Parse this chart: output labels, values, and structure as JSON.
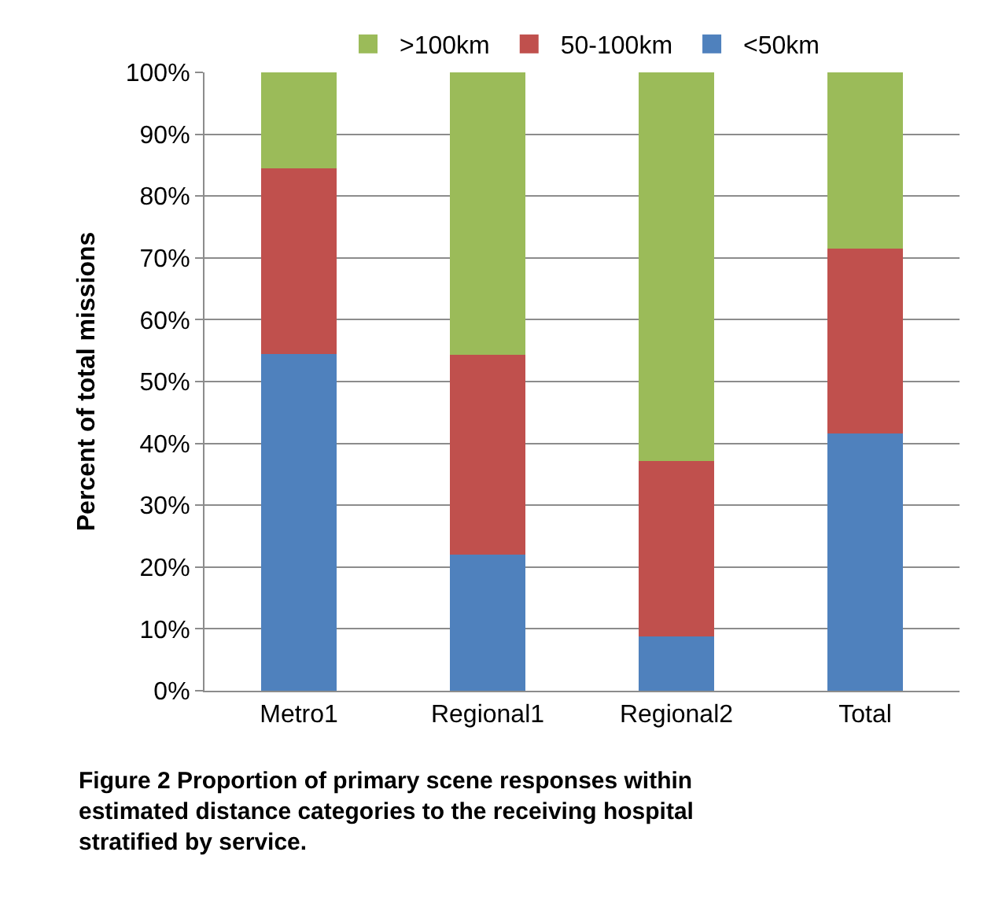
{
  "chart_data": {
    "type": "bar",
    "stacked": true,
    "ylabel": "Percent of total missions",
    "categories": [
      "Metro1",
      "Regional1",
      "Regional2",
      "Total"
    ],
    "series": [
      {
        "name": "<50km",
        "color": "#4f81bd",
        "values": [
          54.5,
          22,
          8.8,
          41.6
        ]
      },
      {
        "name": "50-100km",
        "color": "#c0504d",
        "values": [
          30,
          32.3,
          28.4,
          29.9
        ]
      },
      {
        "name": ">100km",
        "color": "#9bbb59",
        "values": [
          15.5,
          45.7,
          62.8,
          28.5
        ]
      }
    ],
    "ylim": [
      0,
      100
    ],
    "yticks": [
      {
        "value": 0,
        "label": "0%"
      },
      {
        "value": 10,
        "label": "10%"
      },
      {
        "value": 20,
        "label": "20%"
      },
      {
        "value": 30,
        "label": "30%"
      },
      {
        "value": 40,
        "label": "40%"
      },
      {
        "value": 50,
        "label": "50%"
      },
      {
        "value": 60,
        "label": "60%"
      },
      {
        "value": 70,
        "label": "70%"
      },
      {
        "value": 80,
        "label": "80%"
      },
      {
        "value": 90,
        "label": "90%"
      },
      {
        "value": 100,
        "label": "100%"
      }
    ],
    "grid": "y",
    "legend": "top",
    "annotations": [
      "Figure 2 Proportion of primary scene responses within estimated distance categories to the receiving hospital stratified by service."
    ]
  }
}
